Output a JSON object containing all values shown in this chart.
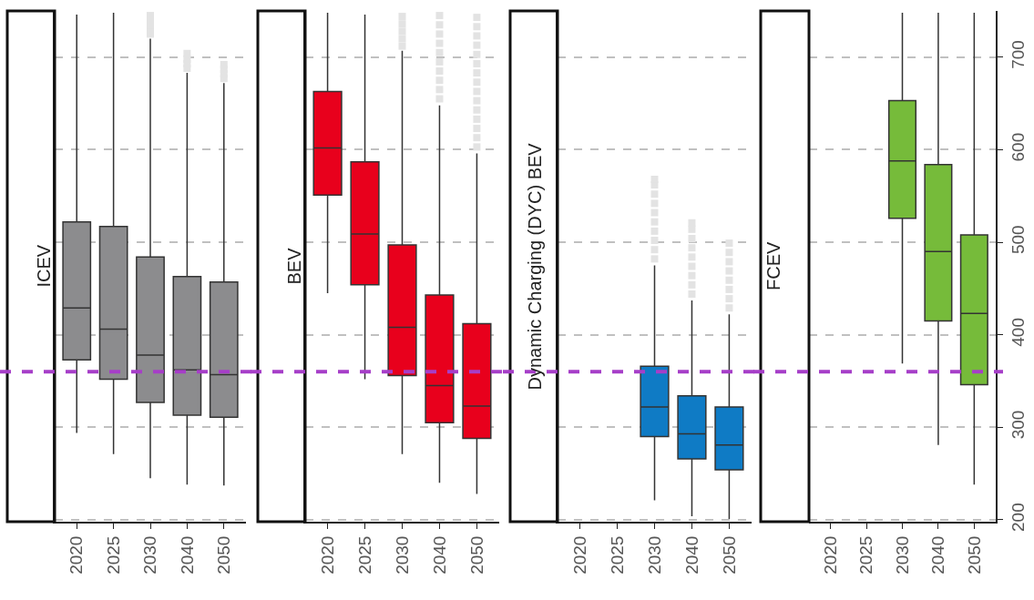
{
  "chart_data": [
    {
      "type": "box",
      "title": "ICEV",
      "categories": [
        "2020",
        "2025",
        "2030",
        "2040",
        "2050"
      ],
      "color": "#8c8c8e",
      "ylim": [
        198,
        750
      ],
      "yticks": [
        200,
        300,
        400,
        500,
        600,
        700
      ],
      "grid": "y",
      "tick_labels": "x",
      "ref_lines": [
        {
          "axis": "y",
          "value": 360,
          "color": "#a63ec8",
          "line_style": "dashed"
        }
      ],
      "boxes": [
        {
          "low": 294,
          "q1": 373,
          "median": 429,
          "q3": 522,
          "high": 746
        },
        {
          "low": 271,
          "q1": 352,
          "median": 406,
          "q3": 517,
          "high": 748
        },
        {
          "low": 245,
          "q1": 327,
          "median": 378,
          "q3": 484,
          "high": 720,
          "outliers": [
            725,
            730,
            735,
            740,
            745
          ]
        },
        {
          "low": 238,
          "q1": 313,
          "median": 362,
          "q3": 463,
          "high": 683,
          "outliers": [
            688,
            693,
            698,
            704
          ]
        },
        {
          "low": 237,
          "q1": 311,
          "median": 357,
          "q3": 457,
          "high": 672,
          "outliers": [
            677,
            682,
            687,
            692
          ]
        }
      ]
    },
    {
      "type": "box",
      "title": "BEV",
      "categories": [
        "2020",
        "2025",
        "2030",
        "2040",
        "2050"
      ],
      "color": "#e8001c",
      "ylim": [
        198,
        750
      ],
      "yticks": [
        200,
        300,
        400,
        500,
        600,
        700
      ],
      "grid": "y",
      "tick_labels": "x",
      "ref_lines": [
        {
          "axis": "y",
          "value": 360,
          "color": "#a63ec8",
          "line_style": "dashed"
        }
      ],
      "boxes": [
        {
          "low": 445,
          "q1": 551,
          "median": 602,
          "q3": 663,
          "high": 748
        },
        {
          "low": 352,
          "q1": 454,
          "median": 509,
          "q3": 587,
          "high": 746
        },
        {
          "low": 271,
          "q1": 356,
          "median": 408,
          "q3": 497,
          "high": 707,
          "outliers": [
            712,
            720,
            728,
            736,
            744
          ]
        },
        {
          "low": 240,
          "q1": 305,
          "median": 345,
          "q3": 443,
          "high": 648,
          "outliers": [
            655,
            665,
            675,
            685,
            695,
            705,
            715,
            725,
            735,
            745
          ]
        },
        {
          "low": 228,
          "q1": 288,
          "median": 323,
          "q3": 412,
          "high": 596,
          "outliers": [
            603,
            613,
            623,
            633,
            643,
            653,
            663,
            673,
            683,
            693,
            703,
            713,
            723,
            733,
            743
          ]
        }
      ]
    },
    {
      "type": "box",
      "title": "Dynamic Charging (DYC) BEV",
      "categories": [
        "2020",
        "2025",
        "2030",
        "2040",
        "2050"
      ],
      "color": "#0f7bc5",
      "ylim": [
        198,
        750
      ],
      "yticks": [
        200,
        300,
        400,
        500,
        600,
        700
      ],
      "grid": "y",
      "tick_labels": "x",
      "ref_lines": [
        {
          "axis": "y",
          "value": 360,
          "color": "#a63ec8",
          "line_style": "dashed"
        }
      ],
      "boxes": [
        null,
        null,
        {
          "low": 221,
          "q1": 290,
          "median": 322,
          "q3": 366,
          "high": 475,
          "outliers": [
            482,
            492,
            502,
            512,
            522,
            532,
            542,
            552,
            562,
            568
          ]
        },
        {
          "low": 204,
          "q1": 266,
          "median": 293,
          "q3": 334,
          "high": 437,
          "outliers": [
            444,
            454,
            464,
            474,
            484,
            494,
            504,
            514,
            521
          ]
        },
        {
          "low": 201,
          "q1": 254,
          "median": 281,
          "q3": 322,
          "high": 422,
          "outliers": [
            429,
            439,
            449,
            459,
            469,
            479,
            489,
            499
          ]
        }
      ]
    },
    {
      "type": "box",
      "title": "FCEV",
      "categories": [
        "2020",
        "2025",
        "2030",
        "2040",
        "2050"
      ],
      "color": "#76bb3a",
      "ylim": [
        198,
        750
      ],
      "yticks": [
        200,
        300,
        400,
        500,
        600,
        700
      ],
      "grid": "y",
      "ref_lines": [
        {
          "axis": "y",
          "value": 360,
          "color": "#a63ec8",
          "line_style": "dashed"
        }
      ],
      "boxes": [
        null,
        null,
        {
          "low": 369,
          "q1": 526,
          "median": 588,
          "q3": 653,
          "high": 748
        },
        {
          "low": 281,
          "q1": 415,
          "median": 490,
          "q3": 584,
          "high": 748
        },
        {
          "low": 238,
          "q1": 346,
          "median": 423,
          "q3": 508,
          "high": 748
        }
      ]
    }
  ]
}
